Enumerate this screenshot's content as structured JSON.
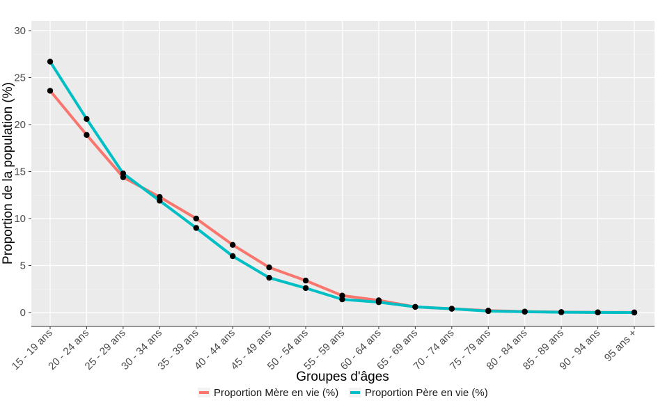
{
  "chart_data": {
    "type": "line",
    "title": "",
    "xlabel": "Groupes d'âges",
    "ylabel": "Proportion de la population (%)",
    "categories": [
      "15 - 19 ans",
      "20 - 24 ans",
      "25 - 29 ans",
      "30 - 34 ans",
      "35 - 39 ans",
      "40 - 44 ans",
      "45 - 49 ans",
      "50 - 54 ans",
      "55 - 59 ans",
      "60 - 64 ans",
      "65 - 69 ans",
      "70 - 74 ans",
      "75 - 79 ans",
      "80 - 84 ans",
      "85 - 89 ans",
      "90 - 94 ans",
      "95 ans +"
    ],
    "ylim": [
      0,
      30
    ],
    "yticks": [
      0,
      5,
      10,
      15,
      20,
      25,
      30
    ],
    "ytick_labels": [
      "0",
      "5",
      "10",
      "15",
      "20",
      "25",
      "30"
    ],
    "grid": true,
    "legend_position": "bottom",
    "background": "#ebebeb",
    "series": [
      {
        "name": "Proportion Mère en vie (%)",
        "color": "#f8766d",
        "values": [
          23.6,
          18.9,
          14.4,
          12.3,
          10.0,
          7.2,
          4.8,
          3.4,
          1.8,
          1.3,
          0.6,
          0.4,
          0.2,
          0.1,
          0.05,
          0.02,
          0.01
        ]
      },
      {
        "name": "Proportion Père en vie (%)",
        "color": "#00bfc4",
        "values": [
          26.7,
          20.6,
          14.8,
          11.9,
          9.0,
          6.0,
          3.7,
          2.6,
          1.4,
          1.1,
          0.6,
          0.4,
          0.15,
          0.08,
          0.03,
          0.01,
          0.0
        ]
      }
    ]
  }
}
